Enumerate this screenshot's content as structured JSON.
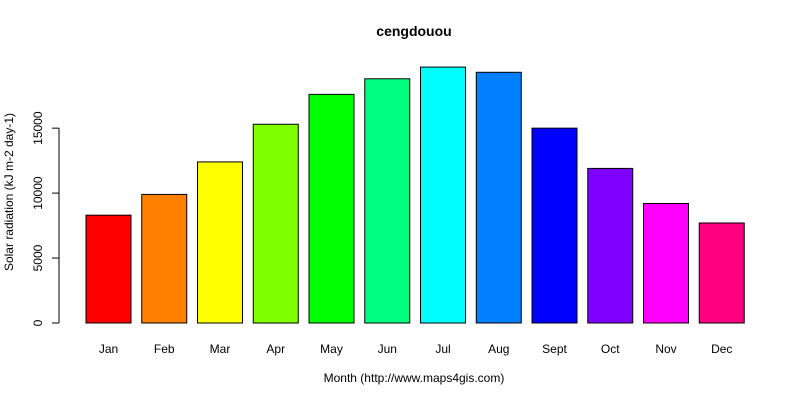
{
  "chart_data": {
    "type": "bar",
    "title": "cengdouou",
    "xlabel": "Month (http://www.maps4gis.com)",
    "ylabel": "Solar radiation (kJ m-2 day-1)",
    "categories": [
      "Jan",
      "Feb",
      "Mar",
      "Apr",
      "May",
      "Jun",
      "Jul",
      "Aug",
      "Sept",
      "Oct",
      "Nov",
      "Dec"
    ],
    "values": [
      8300,
      9900,
      12400,
      15300,
      17600,
      18800,
      19700,
      19300,
      15000,
      11900,
      9200,
      7700
    ],
    "colors": [
      "#FF0000",
      "#FF8000",
      "#FFFF00",
      "#80FF00",
      "#00FF00",
      "#00FF80",
      "#00FFFF",
      "#0080FF",
      "#0000FF",
      "#8000FF",
      "#FF00FF",
      "#FF0080"
    ],
    "yticks": [
      0,
      5000,
      10000,
      15000
    ],
    "ylim": [
      0,
      20000
    ],
    "grid": false,
    "legend": "none"
  }
}
